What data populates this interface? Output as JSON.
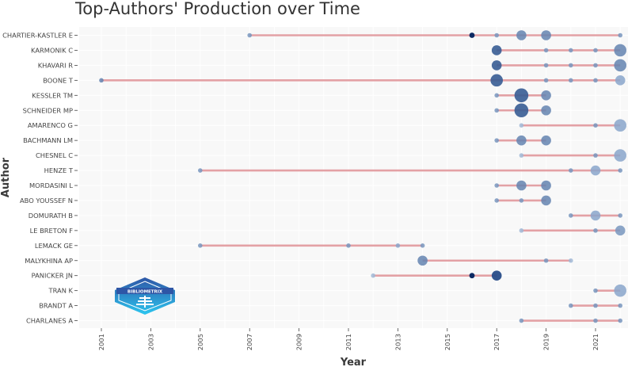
{
  "chart_data": {
    "type": "scatter",
    "title": "Top-Authors' Production over Time",
    "xlabel": "Year",
    "ylabel": "Author",
    "xlim": [
      2000,
      2022.3
    ],
    "xticks": [
      "2001",
      "2003",
      "2005",
      "2007",
      "2009",
      "2011",
      "2013",
      "2015",
      "2017",
      "2019",
      "2021"
    ],
    "grid": true,
    "colors": {
      "line": "#e3a1a5",
      "point_light": "#a9bfd9",
      "point_dark": "#0d2a63",
      "plot_bg": "#f8f8f8",
      "grid": "#ffffff"
    },
    "authors": [
      {
        "name": "CHARTIER-KASTLER E",
        "points": [
          [
            2007,
            1,
            1
          ],
          [
            2016,
            2,
            3
          ],
          [
            2017,
            1,
            1
          ],
          [
            2018,
            3,
            1.5
          ],
          [
            2019,
            3,
            1.5
          ],
          [
            2022,
            1,
            1
          ]
        ]
      },
      {
        "name": "KARMONIK C",
        "points": [
          [
            2017,
            3,
            2.2
          ],
          [
            2019,
            1,
            1
          ],
          [
            2020,
            1,
            1
          ],
          [
            2021,
            1,
            1
          ],
          [
            2022,
            4,
            1.5
          ]
        ]
      },
      {
        "name": "KHAVARI R",
        "points": [
          [
            2017,
            3,
            2.2
          ],
          [
            2019,
            1,
            1
          ],
          [
            2020,
            1,
            1
          ],
          [
            2021,
            1,
            1
          ],
          [
            2022,
            4,
            1.5
          ]
        ]
      },
      {
        "name": "BOONE T",
        "points": [
          [
            2001,
            1,
            1.5
          ],
          [
            2017,
            4,
            2.2
          ],
          [
            2019,
            1,
            1
          ],
          [
            2020,
            1,
            1
          ],
          [
            2021,
            1,
            1
          ],
          [
            2022,
            3,
            1.3
          ]
        ]
      },
      {
        "name": "KESSLER TM",
        "points": [
          [
            2017,
            1,
            1
          ],
          [
            2018,
            5,
            2.2
          ],
          [
            2019,
            3,
            1.5
          ]
        ]
      },
      {
        "name": "SCHNEIDER MP",
        "points": [
          [
            2017,
            1,
            1
          ],
          [
            2018,
            5,
            2.2
          ],
          [
            2019,
            3,
            1.5
          ]
        ]
      },
      {
        "name": "AMARENCO G",
        "points": [
          [
            2018,
            1,
            0.8
          ],
          [
            2021,
            1,
            1
          ],
          [
            2022,
            4,
            1.3
          ]
        ]
      },
      {
        "name": "BACHMANN LM",
        "points": [
          [
            2017,
            1,
            1
          ],
          [
            2018,
            3,
            1.5
          ],
          [
            2019,
            3,
            1.5
          ]
        ]
      },
      {
        "name": "CHESNEL C",
        "points": [
          [
            2018,
            1,
            0.8
          ],
          [
            2021,
            1,
            1
          ],
          [
            2022,
            4,
            1.3
          ]
        ]
      },
      {
        "name": "HENZE T",
        "points": [
          [
            2005,
            1,
            1
          ],
          [
            2020,
            1,
            1
          ],
          [
            2021,
            3,
            1.3
          ],
          [
            2022,
            1,
            1
          ]
        ]
      },
      {
        "name": "MORDASINI L",
        "points": [
          [
            2017,
            1,
            1
          ],
          [
            2018,
            3,
            1.5
          ],
          [
            2019,
            3,
            1.5
          ]
        ]
      },
      {
        "name": "ABO YOUSSEF N",
        "points": [
          [
            2017,
            1,
            1
          ],
          [
            2018,
            1,
            1
          ],
          [
            2019,
            3,
            1.5
          ]
        ]
      },
      {
        "name": "DOMURATH B",
        "points": [
          [
            2020,
            1,
            1
          ],
          [
            2021,
            3,
            1.3
          ],
          [
            2022,
            1,
            1
          ]
        ]
      },
      {
        "name": "LE BRETON F",
        "points": [
          [
            2018,
            1,
            0.8
          ],
          [
            2021,
            1,
            1
          ],
          [
            2022,
            3,
            1
          ]
        ]
      },
      {
        "name": "LEMACK GE",
        "points": [
          [
            2005,
            1,
            1
          ],
          [
            2011,
            1,
            1
          ],
          [
            2013,
            1,
            1.3
          ],
          [
            2014,
            1,
            1
          ]
        ]
      },
      {
        "name": "MALYKHINA AP",
        "points": [
          [
            2014,
            3,
            1.5
          ],
          [
            2019,
            1,
            1
          ],
          [
            2020,
            1,
            0.8
          ]
        ]
      },
      {
        "name": "PANICKER JN",
        "points": [
          [
            2012,
            1,
            0.8
          ],
          [
            2016,
            2,
            3
          ],
          [
            2017,
            3,
            2.5
          ]
        ]
      },
      {
        "name": "TRAN K",
        "points": [
          [
            2021,
            1,
            1
          ],
          [
            2022,
            4,
            1.3
          ]
        ]
      },
      {
        "name": "BRANDT A",
        "points": [
          [
            2020,
            1,
            1
          ],
          [
            2021,
            1,
            1
          ],
          [
            2022,
            1,
            1
          ]
        ]
      },
      {
        "name": "CHARLANES A",
        "points": [
          [
            2018,
            1,
            1
          ],
          [
            2021,
            1,
            1
          ],
          [
            2022,
            1,
            1
          ]
        ]
      }
    ],
    "point_fields": [
      "year",
      "articles",
      "shade_level"
    ]
  },
  "logo": {
    "text": "BIBLIOMETRIX",
    "colors": {
      "top": "#2e56a6",
      "bottom": "#2cc6ef"
    }
  }
}
